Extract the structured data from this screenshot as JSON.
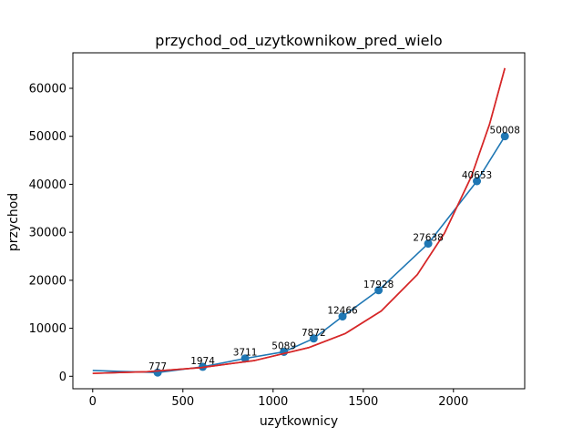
{
  "chart_data": {
    "type": "line",
    "title": "przychod_od_uzytkownikow_pred_wielo",
    "xlabel": "uzytkownicy",
    "ylabel": "przychod",
    "xlim": [
      -110,
      2395
    ],
    "ylim": [
      -2600,
      67400
    ],
    "xticks": [
      0,
      500,
      1000,
      1500,
      2000
    ],
    "yticks": [
      0,
      10000,
      20000,
      30000,
      40000,
      50000,
      60000
    ],
    "grid": false,
    "series": [
      {
        "kind": "line+markers",
        "color": "#1f77b4",
        "x": [
          0,
          360,
          610,
          845,
          1060,
          1225,
          1385,
          1585,
          1860,
          2130,
          2285
        ],
        "y": [
          1200,
          777,
          1974,
          3711,
          5089,
          7872,
          12466,
          17928,
          27638,
          40653,
          50008
        ],
        "markers_x": [
          360,
          610,
          845,
          1060,
          1225,
          1385,
          1585,
          1860,
          2130,
          2285
        ],
        "markers_y": [
          777,
          1974,
          3711,
          5089,
          7872,
          12466,
          17928,
          27638,
          40653,
          50008
        ],
        "labels": [
          "777",
          "1974",
          "3711",
          "5089",
          "7872",
          "12466",
          "17928",
          "27638",
          "40653",
          "50008"
        ]
      },
      {
        "kind": "line",
        "color": "#d62728",
        "x": [
          0,
          300,
          600,
          900,
          1200,
          1400,
          1600,
          1800,
          1950,
          2100,
          2200,
          2285
        ],
        "y": [
          600,
          950,
          1800,
          3300,
          6000,
          8900,
          13600,
          21200,
          29800,
          41700,
          52500,
          64200
        ]
      }
    ]
  }
}
